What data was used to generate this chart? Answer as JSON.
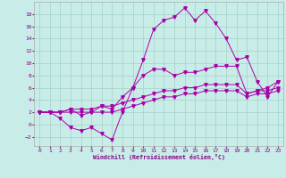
{
  "xlabel": "Windchill (Refroidissement éolien,°C)",
  "xlim": [
    -0.5,
    23.5
  ],
  "ylim": [
    -3.5,
    20
  ],
  "xticks": [
    0,
    1,
    2,
    3,
    4,
    5,
    6,
    7,
    8,
    9,
    10,
    11,
    12,
    13,
    14,
    15,
    16,
    17,
    18,
    19,
    20,
    21,
    22,
    23
  ],
  "yticks": [
    -2,
    0,
    2,
    4,
    6,
    8,
    10,
    12,
    14,
    16,
    18
  ],
  "bg_color": "#c8ede8",
  "grid_color": "#aad4cc",
  "line_color": "#aa00aa",
  "line1_x": [
    0,
    1,
    2,
    3,
    4,
    5,
    6,
    7,
    8,
    9,
    10,
    11,
    12,
    13,
    14,
    15,
    16,
    17,
    18,
    19,
    20,
    21,
    22,
    23
  ],
  "line1_y": [
    2.0,
    2.0,
    1.0,
    -0.5,
    -1.0,
    -0.5,
    -1.5,
    -2.5,
    2.0,
    6.0,
    10.5,
    15.5,
    17.0,
    17.5,
    19.0,
    17.0,
    18.5,
    16.5,
    14.0,
    10.5,
    11.0,
    7.0,
    4.5,
    7.0
  ],
  "line2_x": [
    0,
    1,
    2,
    3,
    4,
    5,
    6,
    7,
    8,
    9,
    10,
    11,
    12,
    13,
    14,
    15,
    16,
    17,
    18,
    19,
    20,
    21,
    22,
    23
  ],
  "line2_y": [
    2.0,
    2.0,
    2.0,
    2.5,
    1.5,
    2.0,
    3.0,
    2.5,
    4.5,
    6.0,
    8.0,
    9.0,
    9.0,
    8.0,
    8.5,
    8.5,
    9.0,
    9.5,
    9.5,
    9.5,
    5.0,
    5.5,
    6.0,
    7.0
  ],
  "line3_x": [
    0,
    1,
    2,
    3,
    4,
    5,
    6,
    7,
    8,
    9,
    10,
    11,
    12,
    13,
    14,
    15,
    16,
    17,
    18,
    19,
    20,
    21,
    22,
    23
  ],
  "line3_y": [
    2.0,
    2.0,
    2.0,
    2.5,
    2.5,
    2.5,
    3.0,
    3.0,
    3.5,
    4.0,
    4.5,
    5.0,
    5.5,
    5.5,
    6.0,
    6.0,
    6.5,
    6.5,
    6.5,
    6.5,
    5.0,
    5.5,
    5.5,
    6.0
  ],
  "line4_x": [
    0,
    1,
    2,
    3,
    4,
    5,
    6,
    7,
    8,
    9,
    10,
    11,
    12,
    13,
    14,
    15,
    16,
    17,
    18,
    19,
    20,
    21,
    22,
    23
  ],
  "line4_y": [
    2.0,
    2.0,
    2.0,
    2.0,
    2.0,
    2.0,
    2.0,
    2.0,
    2.5,
    3.0,
    3.5,
    4.0,
    4.5,
    4.5,
    5.0,
    5.0,
    5.5,
    5.5,
    5.5,
    5.5,
    4.5,
    5.0,
    5.0,
    5.5
  ]
}
